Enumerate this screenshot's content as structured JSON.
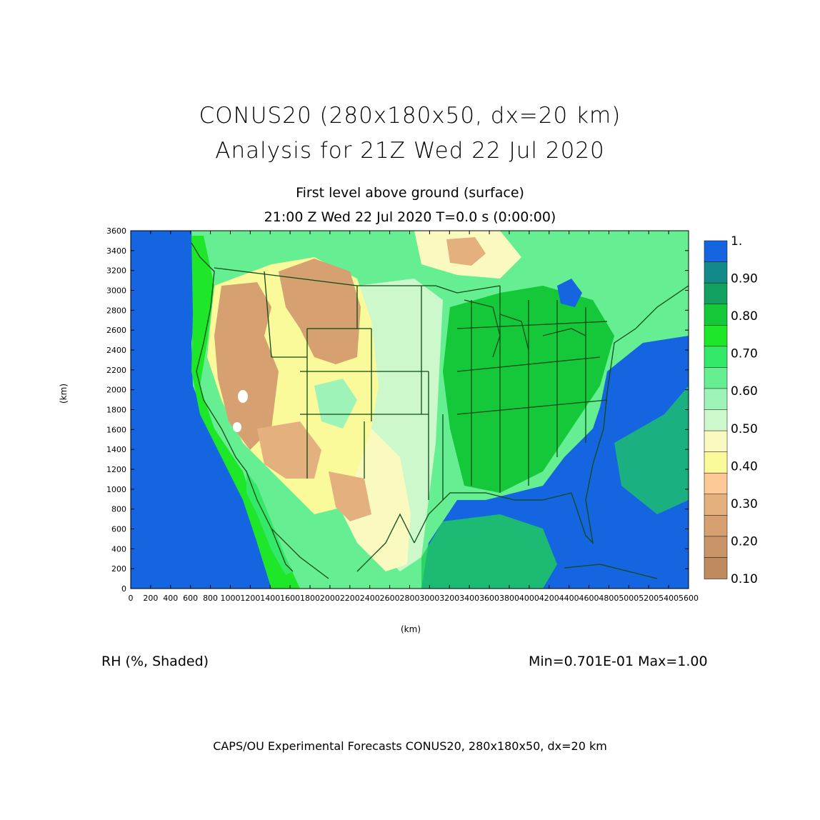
{
  "title": {
    "line1": "CONUS20 (280x180x50, dx=20 km)",
    "line2": "Analysis for 21Z Wed 22 Jul 2020",
    "subtitle": "First level above ground (surface)",
    "valid_time": "21:00 Z Wed 22 Jul 2020   T=0.0 s (0:00:00)"
  },
  "axes": {
    "xlabel": "(km)",
    "ylabel": "(km)",
    "x_range": [
      0,
      5600
    ],
    "y_range": [
      0,
      3600
    ],
    "x_ticks": [
      0,
      200,
      400,
      600,
      800,
      1000,
      1200,
      1400,
      1600,
      1800,
      2000,
      2200,
      2400,
      2600,
      2800,
      3000,
      3200,
      3400,
      3600,
      3800,
      4000,
      4200,
      4400,
      4600,
      4800,
      5000,
      5200,
      5400,
      5600
    ],
    "y_ticks": [
      0,
      200,
      400,
      600,
      800,
      1000,
      1200,
      1400,
      1600,
      1800,
      2000,
      2200,
      2400,
      2600,
      2800,
      3000,
      3200,
      3400,
      3600
    ]
  },
  "field": {
    "name": "RH (%, Shaded)",
    "minmax": "Min=0.701E-01  Max=1.00"
  },
  "colorbar": {
    "labels": [
      "1.",
      "0.90",
      "0.80",
      "0.70",
      "0.60",
      "0.50",
      "0.40",
      "0.30",
      "0.20",
      "0.10"
    ],
    "colors": [
      "#1565e0",
      "#138a8a",
      "#11a060",
      "#14c83a",
      "#1ee628",
      "#34e86a",
      "#66ee92",
      "#9ef4b8",
      "#ccf8cc",
      "#fafac0",
      "#fafa9a",
      "#fcc896",
      "#e4b07e",
      "#d6a070",
      "#c89468",
      "#be8a5e"
    ]
  },
  "footer": "CAPS/OU Experimental Forecasts  CONUS20, 280x180x50, dx=20 km"
}
